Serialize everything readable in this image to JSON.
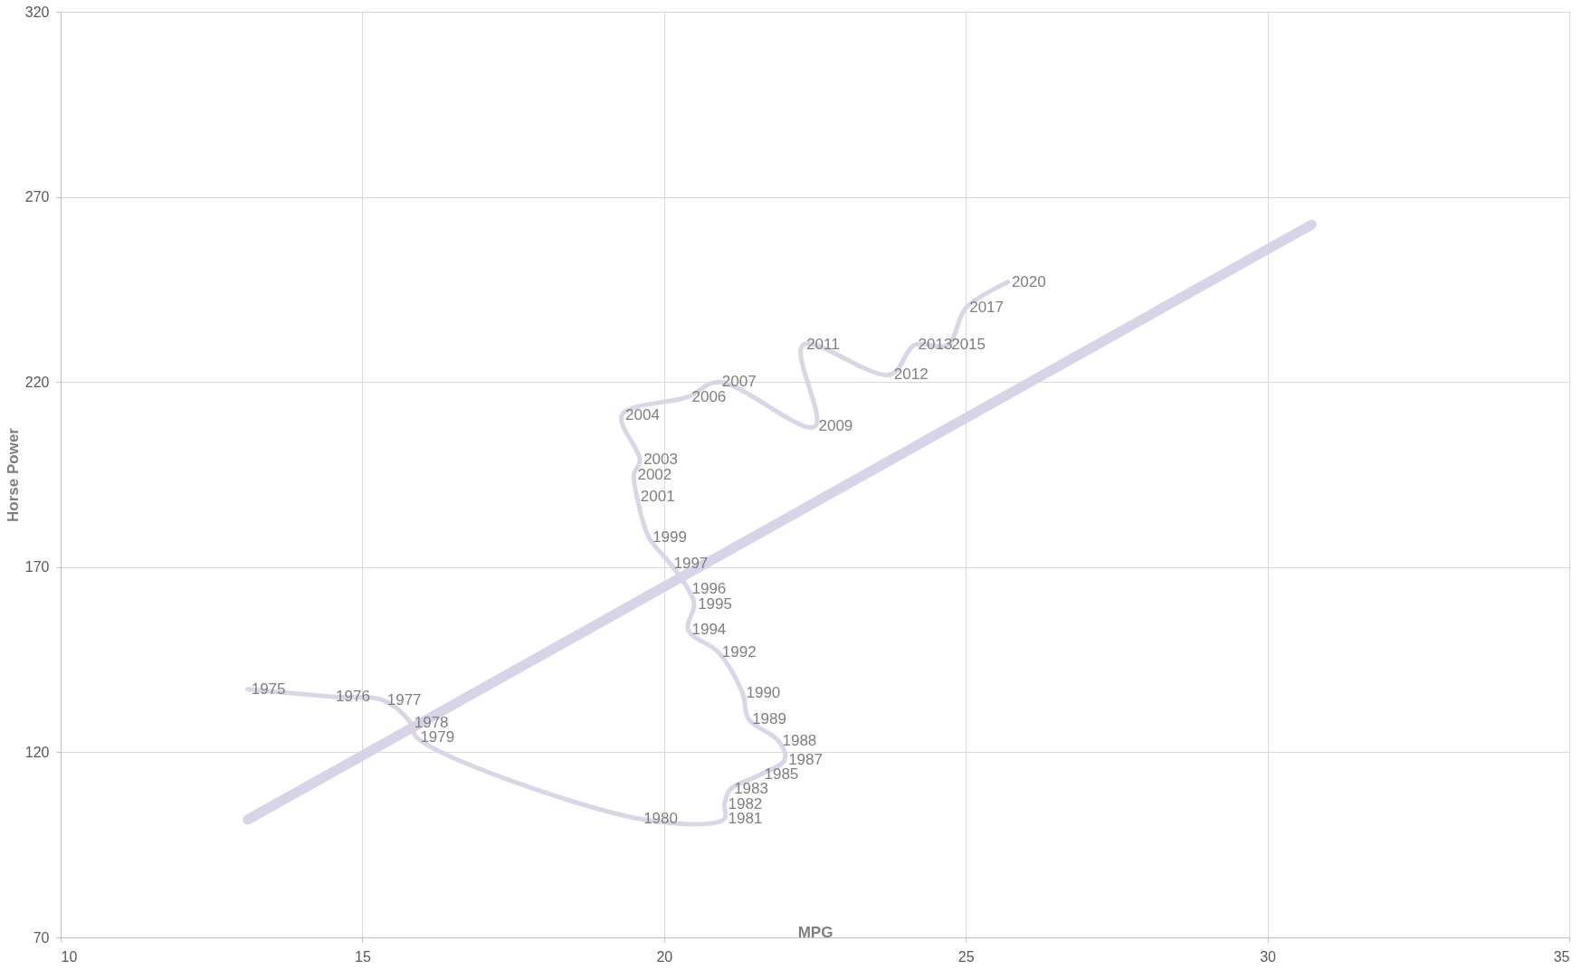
{
  "chart_data": {
    "type": "line",
    "xlabel": "MPG",
    "ylabel": "Horse Power",
    "xlim": [
      10,
      35
    ],
    "xticks": [
      10,
      15,
      20,
      25,
      30,
      35
    ],
    "ylim": [
      70,
      320
    ],
    "yticks": [
      70,
      120,
      170,
      220,
      270,
      320
    ],
    "grid": true,
    "line_style": "solid",
    "marker": "none",
    "series": [
      {
        "color": "#dcd5e8",
        "x": [
          13.1,
          14.5,
          15.35,
          15.8,
          15.9,
          19.6,
          21.0,
          21.0,
          21.1,
          21.6,
          22.0,
          21.9,
          21.4,
          21.3,
          20.9,
          20.4,
          20.5,
          20.4,
          20.1,
          19.75,
          19.55,
          19.5,
          19.6,
          19.3,
          20.4,
          20.9,
          22.5,
          22.3,
          23.75,
          24.15,
          24.7,
          25.0,
          25.7
        ],
        "values": [
          137,
          135,
          134,
          128,
          124,
          102,
          102,
          106,
          110,
          114,
          118,
          123,
          129,
          136,
          147,
          153,
          160,
          164,
          171,
          178,
          189,
          195,
          199,
          211,
          216,
          220,
          208,
          230,
          222,
          230,
          230,
          240,
          247
        ]
      },
      {
        "color": "#d9d3e8",
        "x": [
          13.1,
          30.73
        ],
        "values": [
          101.8,
          262.5
        ]
      }
    ],
    "annotations": [
      {
        "text": "1975",
        "x": 13.1,
        "y": 137
      },
      {
        "text": "1976",
        "x": 14.5,
        "y": 135
      },
      {
        "text": "1977",
        "x": 15.35,
        "y": 134
      },
      {
        "text": "1978",
        "x": 15.8,
        "y": 128
      },
      {
        "text": "1979",
        "x": 15.9,
        "y": 124
      },
      {
        "text": "1980",
        "x": 19.6,
        "y": 102
      },
      {
        "text": "1981",
        "x": 21.0,
        "y": 102
      },
      {
        "text": "1982",
        "x": 21.0,
        "y": 106
      },
      {
        "text": "1983",
        "x": 21.1,
        "y": 110
      },
      {
        "text": "1985",
        "x": 21.6,
        "y": 114
      },
      {
        "text": "1987",
        "x": 22.0,
        "y": 118
      },
      {
        "text": "1988",
        "x": 21.9,
        "y": 123
      },
      {
        "text": "1989",
        "x": 21.4,
        "y": 129
      },
      {
        "text": "1990",
        "x": 21.3,
        "y": 136
      },
      {
        "text": "1992",
        "x": 20.9,
        "y": 147
      },
      {
        "text": "1994",
        "x": 20.4,
        "y": 153
      },
      {
        "text": "1995",
        "x": 20.5,
        "y": 160
      },
      {
        "text": "1996",
        "x": 20.4,
        "y": 164
      },
      {
        "text": "1997",
        "x": 20.1,
        "y": 171
      },
      {
        "text": "1999",
        "x": 19.75,
        "y": 178
      },
      {
        "text": "2001",
        "x": 19.55,
        "y": 189
      },
      {
        "text": "2002",
        "x": 19.5,
        "y": 195
      },
      {
        "text": "2003",
        "x": 19.6,
        "y": 199
      },
      {
        "text": "2004",
        "x": 19.3,
        "y": 211
      },
      {
        "text": "2006",
        "x": 20.4,
        "y": 216
      },
      {
        "text": "2007",
        "x": 20.9,
        "y": 220
      },
      {
        "text": "2009",
        "x": 22.5,
        "y": 208
      },
      {
        "text": "2011",
        "x": 22.3,
        "y": 230
      },
      {
        "text": "2012",
        "x": 23.75,
        "y": 222
      },
      {
        "text": "2013",
        "x": 24.15,
        "y": 230
      },
      {
        "text": "2015",
        "x": 24.7,
        "y": 230
      },
      {
        "text": "2017",
        "x": 25.0,
        "y": 240
      },
      {
        "text": "2020",
        "x": 25.7,
        "y": 247
      }
    ]
  }
}
